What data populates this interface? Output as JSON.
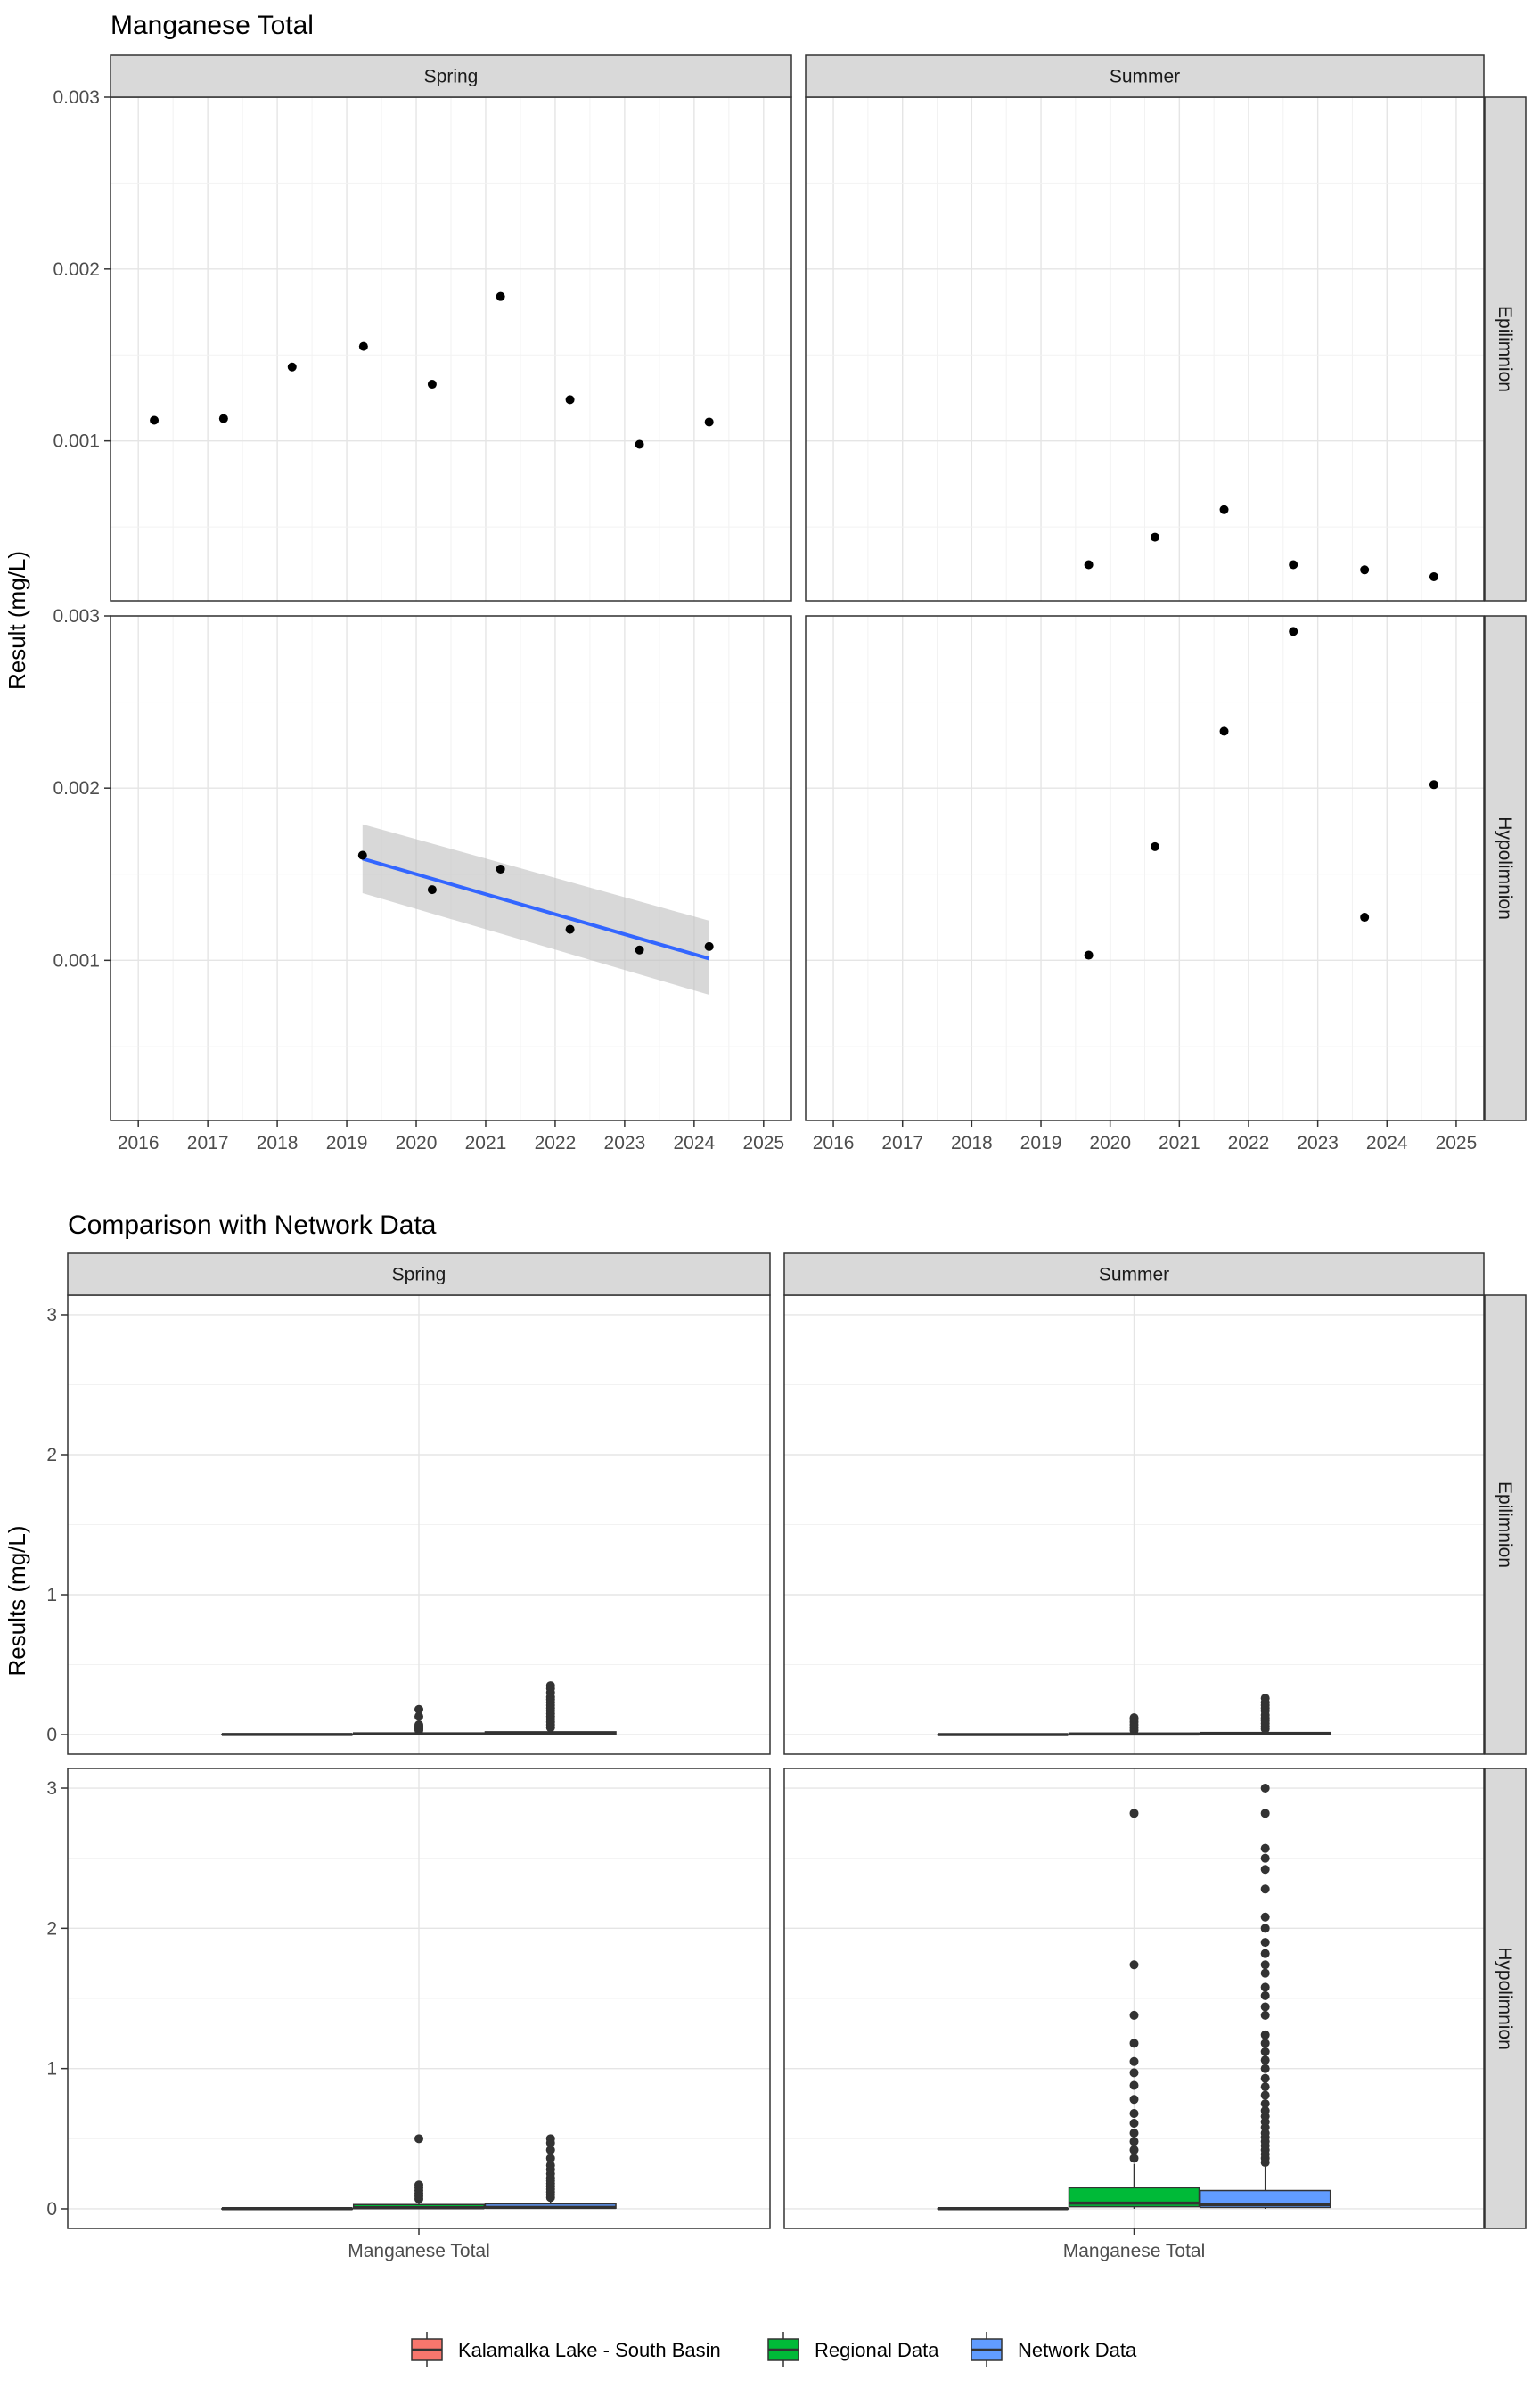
{
  "chart_data": [
    {
      "type": "scatter",
      "title": "Manganese Total",
      "ylabel": "Result (mg/L)",
      "xlabel": "",
      "xlim": [
        2015.6,
        2025.4
      ],
      "ylim": [
        7e-05,
        0.003
      ],
      "x_ticks": [
        "2016",
        "2017",
        "2018",
        "2019",
        "2020",
        "2021",
        "2022",
        "2023",
        "2024",
        "2025"
      ],
      "y_ticks": [
        "0.001",
        "0.002",
        "0.003"
      ],
      "y_tick_values": [
        0.001,
        0.002,
        0.003
      ],
      "columns": [
        "Spring",
        "Summer"
      ],
      "rows": [
        "Epilimnion",
        "Hypolimnion"
      ],
      "grid": true,
      "panels": [
        {
          "column": "Spring",
          "row": "Epilimnion",
          "points": [
            {
              "x": "2016-03-25",
              "y": 0.00112
            },
            {
              "x": "2017-03-25",
              "y": 0.00113
            },
            {
              "x": "2018-03-20",
              "y": 0.00143
            },
            {
              "x": "2019-03-30",
              "y": 0.00155
            },
            {
              "x": "2020-03-25",
              "y": 0.00133
            },
            {
              "x": "2021-03-20",
              "y": 0.00184
            },
            {
              "x": "2022-03-20",
              "y": 0.00124
            },
            {
              "x": "2023-03-20",
              "y": 0.00098
            },
            {
              "x": "2024-03-20",
              "y": 0.00111
            }
          ]
        },
        {
          "column": "Summer",
          "row": "Epilimnion",
          "points": [
            {
              "x": "2019-09-10",
              "y": 0.00028
            },
            {
              "x": "2020-08-25",
              "y": 0.00044
            },
            {
              "x": "2021-08-25",
              "y": 0.0006
            },
            {
              "x": "2022-08-25",
              "y": 0.00028
            },
            {
              "x": "2023-09-05",
              "y": 0.00025
            },
            {
              "x": "2024-09-05",
              "y": 0.00021
            }
          ]
        },
        {
          "column": "Spring",
          "row": "Hypolimnion",
          "points": [
            {
              "x": "2019-03-25",
              "y": 0.00161
            },
            {
              "x": "2020-03-25",
              "y": 0.00141
            },
            {
              "x": "2021-03-20",
              "y": 0.00153
            },
            {
              "x": "2022-03-20",
              "y": 0.00118
            },
            {
              "x": "2023-03-20",
              "y": 0.00106
            },
            {
              "x": "2024-03-20",
              "y": 0.00108
            }
          ],
          "trend": {
            "start": {
              "x": "2019-03-25",
              "y": 0.00159,
              "lo": 0.00139,
              "hi": 0.00179
            },
            "end": {
              "x": "2024-03-20",
              "y": 0.00101,
              "lo": 0.0008,
              "hi": 0.00123
            },
            "line_color": "#3366FF",
            "band_color": "#BEBEBE"
          }
        },
        {
          "column": "Summer",
          "row": "Hypolimnion",
          "points": [
            {
              "x": "2019-09-10",
              "y": 0.00103
            },
            {
              "x": "2020-08-25",
              "y": 0.00166
            },
            {
              "x": "2021-08-25",
              "y": 0.00233
            },
            {
              "x": "2022-08-25",
              "y": 0.00291
            },
            {
              "x": "2023-09-05",
              "y": 0.00125
            },
            {
              "x": "2024-09-05",
              "y": 0.00202
            }
          ]
        }
      ]
    },
    {
      "type": "box",
      "title": "Comparison with Network Data",
      "ylabel": "Results (mg/L)",
      "xlabel": "",
      "categories": [
        "Manganese Total"
      ],
      "ylim": [
        -0.14,
        3.14
      ],
      "y_ticks": [
        "0",
        "1",
        "2",
        "3"
      ],
      "y_tick_values": [
        0,
        1,
        2,
        3
      ],
      "columns": [
        "Spring",
        "Summer"
      ],
      "rows": [
        "Epilimnion",
        "Hypolimnion"
      ],
      "grid": true,
      "legend": {
        "position": "bottom",
        "entries": [
          {
            "label": "Kalamalka Lake - South Basin",
            "color": "#F8766D"
          },
          {
            "label": "Regional Data",
            "color": "#00BA38"
          },
          {
            "label": "Network Data",
            "color": "#619CFF"
          }
        ]
      },
      "panels": [
        {
          "column": "Spring",
          "row": "Epilimnion",
          "boxes": [
            {
              "series": "Kalamalka Lake - South Basin",
              "q1": 0.001,
              "median": 0.001,
              "q3": 0.002,
              "whisker_low": 0.001,
              "whisker_high": 0.002,
              "outliers": []
            },
            {
              "series": "Regional Data",
              "q1": 0.002,
              "median": 0.005,
              "q3": 0.012,
              "whisker_low": 0.0,
              "whisker_high": 0.025,
              "outliers": [
                0.03,
                0.04,
                0.05,
                0.06,
                0.07,
                0.13,
                0.18
              ]
            },
            {
              "series": "Network Data",
              "q1": 0.004,
              "median": 0.008,
              "q3": 0.02,
              "whisker_low": 0.0,
              "whisker_high": 0.04,
              "outliers": [
                0.05,
                0.07,
                0.09,
                0.11,
                0.13,
                0.15,
                0.17,
                0.19,
                0.21,
                0.23,
                0.25,
                0.27,
                0.3,
                0.33,
                0.35
              ]
            }
          ]
        },
        {
          "column": "Summer",
          "row": "Epilimnion",
          "boxes": [
            {
              "series": "Kalamalka Lake - South Basin",
              "q1": 0.0002,
              "median": 0.0003,
              "q3": 0.0005,
              "whisker_low": 0.0002,
              "whisker_high": 0.0006,
              "outliers": []
            },
            {
              "series": "Regional Data",
              "q1": 0.002,
              "median": 0.004,
              "q3": 0.01,
              "whisker_low": 0.0,
              "whisker_high": 0.02,
              "outliers": [
                0.03,
                0.05,
                0.07,
                0.09,
                0.11,
                0.12
              ]
            },
            {
              "series": "Network Data",
              "q1": 0.003,
              "median": 0.006,
              "q3": 0.015,
              "whisker_low": 0.0,
              "whisker_high": 0.03,
              "outliers": [
                0.04,
                0.06,
                0.08,
                0.1,
                0.12,
                0.14,
                0.17,
                0.19,
                0.21,
                0.23,
                0.26
              ]
            }
          ]
        },
        {
          "column": "Spring",
          "row": "Hypolimnion",
          "boxes": [
            {
              "series": "Kalamalka Lake - South Basin",
              "q1": 0.001,
              "median": 0.0012,
              "q3": 0.0016,
              "whisker_low": 0.001,
              "whisker_high": 0.0016,
              "outliers": []
            },
            {
              "series": "Regional Data",
              "q1": 0.004,
              "median": 0.008,
              "q3": 0.03,
              "whisker_low": 0.0,
              "whisker_high": 0.06,
              "outliers": [
                0.07,
                0.09,
                0.11,
                0.13,
                0.15,
                0.17,
                0.5
              ]
            },
            {
              "series": "Network Data",
              "q1": 0.005,
              "median": 0.01,
              "q3": 0.035,
              "whisker_low": 0.0,
              "whisker_high": 0.07,
              "outliers": [
                0.08,
                0.1,
                0.12,
                0.14,
                0.16,
                0.18,
                0.2,
                0.22,
                0.25,
                0.28,
                0.31,
                0.36,
                0.42,
                0.47,
                0.5
              ]
            }
          ]
        },
        {
          "column": "Summer",
          "row": "Hypolimnion",
          "boxes": [
            {
              "series": "Kalamalka Lake - South Basin",
              "q1": 0.001,
              "median": 0.0015,
              "q3": 0.0025,
              "whisker_low": 0.001,
              "whisker_high": 0.0029,
              "outliers": []
            },
            {
              "series": "Regional Data",
              "q1": 0.015,
              "median": 0.04,
              "q3": 0.15,
              "whisker_low": 0.0,
              "whisker_high": 0.32,
              "outliers": [
                0.36,
                0.42,
                0.48,
                0.54,
                0.61,
                0.68,
                0.78,
                0.88,
                0.97,
                1.05,
                1.18,
                1.38,
                1.74,
                2.82
              ]
            },
            {
              "series": "Network Data",
              "q1": 0.01,
              "median": 0.03,
              "q3": 0.13,
              "whisker_low": 0.0,
              "whisker_high": 0.3,
              "outliers": [
                0.33,
                0.36,
                0.39,
                0.42,
                0.45,
                0.48,
                0.51,
                0.54,
                0.58,
                0.62,
                0.66,
                0.7,
                0.75,
                0.81,
                0.87,
                0.93,
                1.0,
                1.06,
                1.12,
                1.18,
                1.24,
                1.38,
                1.44,
                1.52,
                1.58,
                1.68,
                1.74,
                1.82,
                1.9,
                2.0,
                2.08,
                2.28,
                2.42,
                2.5,
                2.57,
                2.82,
                3.0
              ]
            }
          ]
        }
      ]
    }
  ]
}
